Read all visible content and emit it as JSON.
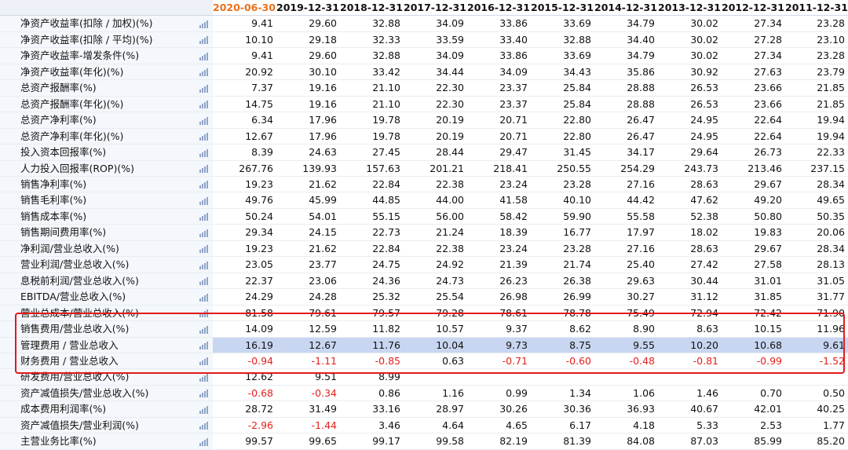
{
  "header": {
    "periods": [
      "2020-06-30",
      "2019-12-31",
      "2018-12-31",
      "2017-12-31",
      "2016-12-31",
      "2015-12-31",
      "2014-12-31",
      "2013-12-31",
      "2012-12-31",
      "2011-12-31"
    ]
  },
  "colors": {
    "latest_period": "#e8701a",
    "negative": "#e3201c",
    "highlight_row": "#c9d6f1",
    "callout_box": "#e31a1a"
  },
  "icons": {
    "row_chart": "bar-chart-icon"
  },
  "rows": [
    {
      "label": "净资产收益率(扣除 / 加权)(%)",
      "values": [
        "9.41",
        "29.60",
        "32.88",
        "34.09",
        "33.86",
        "33.69",
        "34.79",
        "30.02",
        "27.34",
        "23.28"
      ]
    },
    {
      "label": "净资产收益率(扣除 / 平均)(%)",
      "values": [
        "10.10",
        "29.18",
        "32.33",
        "33.59",
        "33.40",
        "32.88",
        "34.40",
        "30.02",
        "27.28",
        "23.10"
      ]
    },
    {
      "label": "净资产收益率-增发条件(%)",
      "values": [
        "9.41",
        "29.60",
        "32.88",
        "34.09",
        "33.86",
        "33.69",
        "34.79",
        "30.02",
        "27.34",
        "23.28"
      ]
    },
    {
      "label": "净资产收益率(年化)(%)",
      "values": [
        "20.92",
        "30.10",
        "33.42",
        "34.44",
        "34.09",
        "34.43",
        "35.86",
        "30.92",
        "27.63",
        "23.79"
      ]
    },
    {
      "label": "总资产报酬率(%)",
      "values": [
        "7.37",
        "19.16",
        "21.10",
        "22.30",
        "23.37",
        "25.84",
        "28.88",
        "26.53",
        "23.66",
        "21.85"
      ]
    },
    {
      "label": "总资产报酬率(年化)(%)",
      "values": [
        "14.75",
        "19.16",
        "21.10",
        "22.30",
        "23.37",
        "25.84",
        "28.88",
        "26.53",
        "23.66",
        "21.85"
      ]
    },
    {
      "label": "总资产净利率(%)",
      "values": [
        "6.34",
        "17.96",
        "19.78",
        "20.19",
        "20.71",
        "22.80",
        "26.47",
        "24.95",
        "22.64",
        "19.94"
      ]
    },
    {
      "label": "总资产净利率(年化)(%)",
      "values": [
        "12.67",
        "17.96",
        "19.78",
        "20.19",
        "20.71",
        "22.80",
        "26.47",
        "24.95",
        "22.64",
        "19.94"
      ]
    },
    {
      "label": "投入资本回报率(%)",
      "values": [
        "8.39",
        "24.63",
        "27.45",
        "28.44",
        "29.47",
        "31.45",
        "34.17",
        "29.64",
        "26.73",
        "22.33"
      ]
    },
    {
      "label": "人力投入回报率(ROP)(%)",
      "values": [
        "267.76",
        "139.93",
        "157.63",
        "201.21",
        "218.41",
        "250.55",
        "254.29",
        "243.73",
        "213.46",
        "237.15"
      ]
    },
    {
      "label": "销售净利率(%)",
      "values": [
        "19.23",
        "21.62",
        "22.84",
        "22.38",
        "23.24",
        "23.28",
        "27.16",
        "28.63",
        "29.67",
        "28.34"
      ]
    },
    {
      "label": "销售毛利率(%)",
      "values": [
        "49.76",
        "45.99",
        "44.85",
        "44.00",
        "41.58",
        "40.10",
        "44.42",
        "47.62",
        "49.20",
        "49.65"
      ]
    },
    {
      "label": "销售成本率(%)",
      "values": [
        "50.24",
        "54.01",
        "55.15",
        "56.00",
        "58.42",
        "59.90",
        "55.58",
        "52.38",
        "50.80",
        "50.35"
      ]
    },
    {
      "label": "销售期间费用率(%)",
      "values": [
        "29.34",
        "24.15",
        "22.73",
        "21.24",
        "18.39",
        "16.77",
        "17.97",
        "18.02",
        "19.83",
        "20.06"
      ]
    },
    {
      "label": "净利润/营业总收入(%)",
      "values": [
        "19.23",
        "21.62",
        "22.84",
        "22.38",
        "23.24",
        "23.28",
        "27.16",
        "28.63",
        "29.67",
        "28.34"
      ]
    },
    {
      "label": "营业利润/营业总收入(%)",
      "values": [
        "23.05",
        "23.77",
        "24.75",
        "24.92",
        "21.39",
        "21.74",
        "25.40",
        "27.42",
        "27.58",
        "28.13"
      ]
    },
    {
      "label": "息税前利润/营业总收入(%)",
      "values": [
        "22.37",
        "23.06",
        "24.36",
        "24.73",
        "26.23",
        "26.38",
        "29.63",
        "30.44",
        "31.01",
        "31.05"
      ]
    },
    {
      "label": "EBITDA/营业总收入(%)",
      "values": [
        "24.29",
        "24.28",
        "25.32",
        "25.54",
        "26.98",
        "26.99",
        "30.27",
        "31.12",
        "31.85",
        "31.77"
      ]
    },
    {
      "label": "营业总成本/营业总收入(%)",
      "values": [
        "81.58",
        "79.61",
        "79.57",
        "79.28",
        "78.61",
        "78.78",
        "75.49",
        "72.94",
        "72.42",
        "71.90"
      ]
    },
    {
      "label": "销售费用/营业总收入(%)",
      "values": [
        "14.09",
        "12.59",
        "11.82",
        "10.57",
        "9.37",
        "8.62",
        "8.90",
        "8.63",
        "10.15",
        "11.96"
      ]
    },
    {
      "label": "管理费用 / 营业总收入",
      "values": [
        "16.19",
        "12.67",
        "11.76",
        "10.04",
        "9.73",
        "8.75",
        "9.55",
        "10.20",
        "10.68",
        "9.61"
      ],
      "highlight": true
    },
    {
      "label": "财务费用 / 营业总收入",
      "values": [
        "-0.94",
        "-1.11",
        "-0.85",
        "0.63",
        "-0.71",
        "-0.60",
        "-0.48",
        "-0.81",
        "-0.99",
        "-1.52"
      ]
    },
    {
      "label": "研发费用/营业总收入(%)",
      "values": [
        "12.62",
        "9.51",
        "8.99",
        "",
        "",
        "",
        "",
        "",
        "",
        ""
      ]
    },
    {
      "label": "资产减值损失/营业总收入(%)",
      "values": [
        "-0.68",
        "-0.34",
        "0.86",
        "1.16",
        "0.99",
        "1.34",
        "1.06",
        "1.46",
        "0.70",
        "0.50"
      ]
    },
    {
      "label": "成本费用利润率(%)",
      "values": [
        "28.72",
        "31.49",
        "33.16",
        "28.97",
        "30.26",
        "30.36",
        "36.93",
        "40.67",
        "42.01",
        "40.25"
      ]
    },
    {
      "label": "资产减值损失/营业利润(%)",
      "values": [
        "-2.96",
        "-1.44",
        "3.46",
        "4.64",
        "4.65",
        "6.17",
        "4.18",
        "5.33",
        "2.53",
        "1.77"
      ]
    },
    {
      "label": "主营业务比率(%)",
      "values": [
        "99.57",
        "99.65",
        "99.17",
        "99.58",
        "82.19",
        "81.39",
        "84.08",
        "87.03",
        "85.99",
        "85.20"
      ]
    }
  ]
}
